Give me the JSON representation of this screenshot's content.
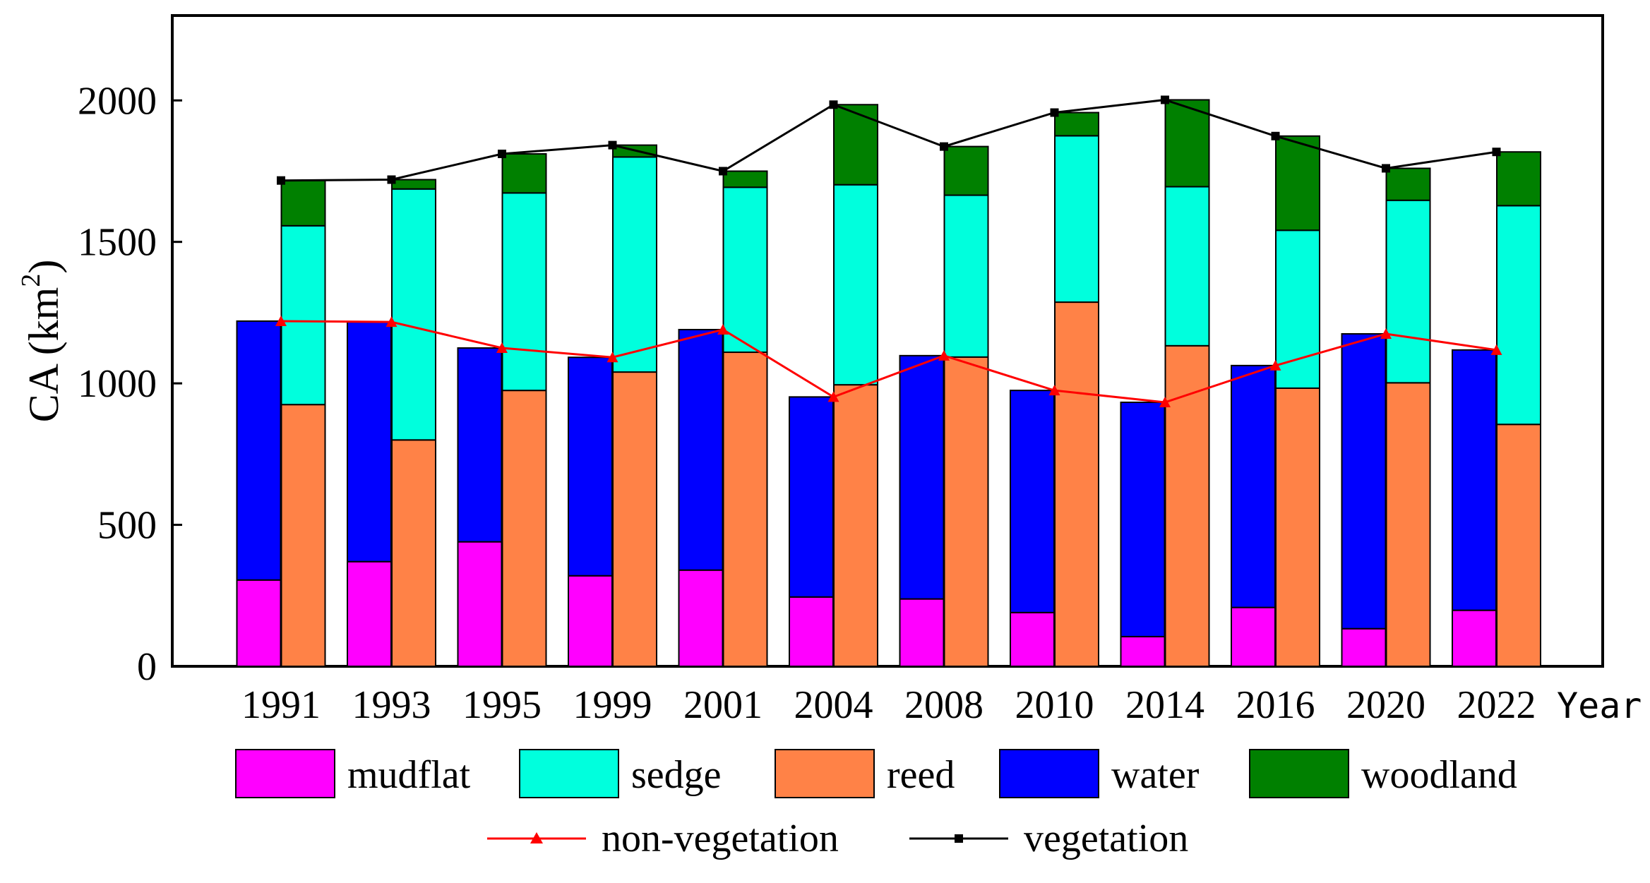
{
  "chart_data": {
    "type": "bar",
    "stacked_groups": true,
    "title": "",
    "ylabel": "CA (km",
    "ylabel_superscript": "2",
    "ylabel_suffix": ")",
    "xlabel": "Year",
    "ylim": [
      0,
      2300
    ],
    "yticks": [
      0,
      500,
      1000,
      1500,
      2000
    ],
    "ytick_labels": [
      "0",
      "500",
      "1000",
      "1500",
      "2000"
    ],
    "categories": [
      "1991",
      "1993",
      "1995",
      "1999",
      "2001",
      "2004",
      "2008",
      "2010",
      "2014",
      "2016",
      "2020",
      "2022"
    ],
    "stacks": [
      {
        "name": "non-vegetation stack",
        "series": [
          {
            "name": "mudflat",
            "color": "#ff00ff",
            "values": [
              305,
              370,
              440,
              320,
              340,
              245,
              238,
              190,
              105,
              208,
              133,
              198
            ]
          },
          {
            "name": "water",
            "color": "#0000ff",
            "values": [
              915,
              847,
              685,
              772,
              850,
              707,
              860,
              785,
              828,
              855,
              1042,
              920
            ]
          }
        ]
      },
      {
        "name": "vegetation stack",
        "series": [
          {
            "name": "reed",
            "color": "#ff8247",
            "values": [
              925,
              800,
              975,
              1040,
              1110,
              995,
              1093,
              1287,
              1133,
              983,
              1002,
              855
            ]
          },
          {
            "name": "sedge",
            "color": "#00ffdd",
            "values": [
              632,
              887,
              698,
              760,
              583,
              707,
              572,
              588,
              562,
              558,
              645,
              773
            ]
          },
          {
            "name": "woodland",
            "color": "#008000",
            "values": [
              160,
              33,
              138,
              42,
              57,
              283,
              172,
              82,
              307,
              333,
              113,
              190
            ]
          }
        ]
      }
    ],
    "lines": [
      {
        "name": "non-vegetation",
        "color": "#ff0000",
        "marker": "triangle",
        "values": [
          1220,
          1217,
          1125,
          1092,
          1190,
          952,
          1098,
          975,
          933,
          1063,
          1175,
          1118
        ]
      },
      {
        "name": "vegetation",
        "color": "#000000",
        "marker": "square",
        "values": [
          1717,
          1720,
          1811,
          1842,
          1750,
          1985,
          1837,
          1957,
          2002,
          1874,
          1760,
          1818
        ]
      }
    ],
    "legend": {
      "position": "bottom",
      "items": [
        {
          "label": "mudflat",
          "color": "#ff00ff",
          "kind": "patch"
        },
        {
          "label": "sedge",
          "color": "#00ffdd",
          "kind": "patch"
        },
        {
          "label": "reed",
          "color": "#ff8247",
          "kind": "patch"
        },
        {
          "label": "water",
          "color": "#0000ff",
          "kind": "patch"
        },
        {
          "label": "woodland",
          "color": "#008000",
          "kind": "patch"
        },
        {
          "label": "non-vegetation",
          "color": "#ff0000",
          "kind": "line-triangle"
        },
        {
          "label": "vegetation",
          "color": "#000000",
          "kind": "line-square"
        }
      ]
    }
  }
}
